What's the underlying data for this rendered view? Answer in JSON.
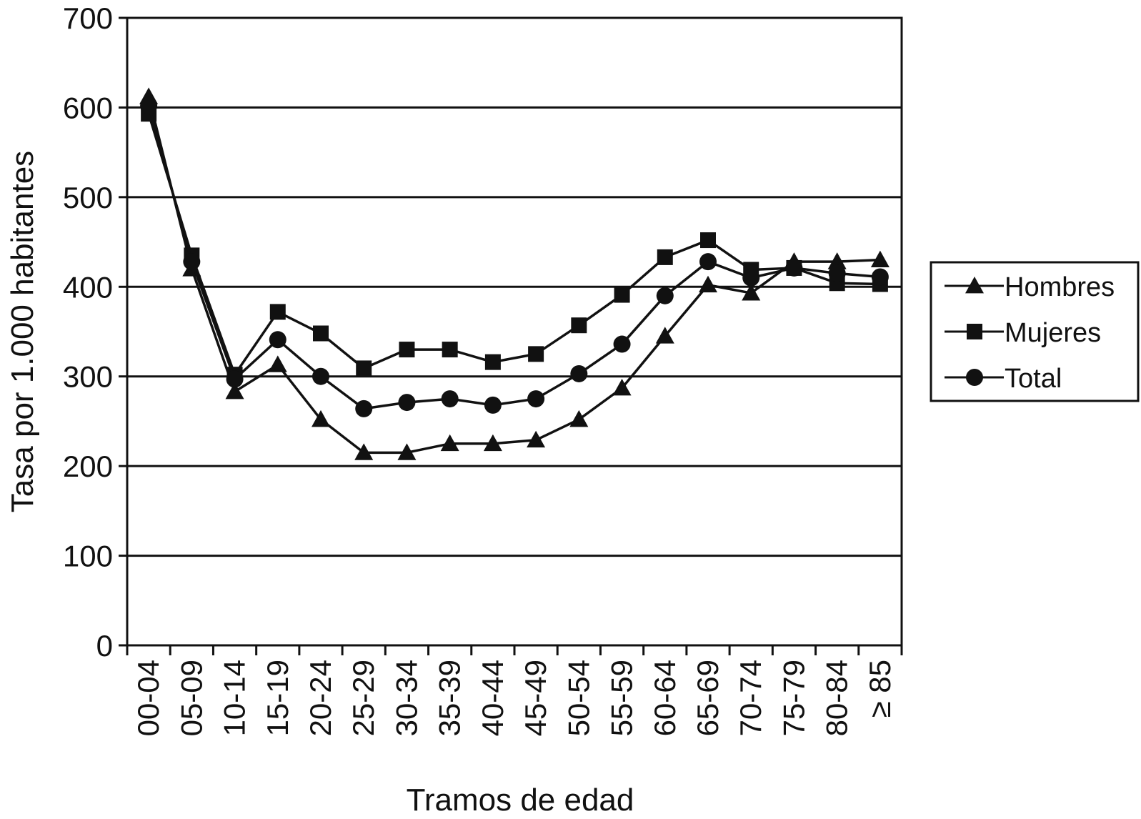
{
  "chart_data": {
    "type": "line",
    "title": "",
    "xlabel": "Tramos de edad",
    "ylabel": "Tasa por 1.000 habitantes",
    "ylim": [
      0,
      700
    ],
    "yticks": [
      0,
      100,
      200,
      300,
      400,
      500,
      600,
      700
    ],
    "grid": true,
    "legend_position": "right",
    "categories": [
      "00-04",
      "05-09",
      "10-14",
      "15-19",
      "20-24",
      "25-29",
      "30-34",
      "35-39",
      "40-44",
      "45-49",
      "50-54",
      "55-59",
      "60-64",
      "65-69",
      "70-74",
      "75-79",
      "80-84",
      "≥ 85"
    ],
    "series": [
      {
        "name": "Hombres",
        "marker": "triangle",
        "values": [
          612,
          420,
          283,
          313,
          252,
          215,
          215,
          225,
          225,
          229,
          252,
          287,
          345,
          402,
          393,
          428,
          428,
          430
        ]
      },
      {
        "name": "Mujeres",
        "marker": "square",
        "values": [
          593,
          435,
          302,
          372,
          348,
          309,
          330,
          330,
          316,
          325,
          357,
          391,
          433,
          452,
          419,
          421,
          404,
          403
        ]
      },
      {
        "name": "Total",
        "marker": "circle",
        "values": [
          602,
          428,
          297,
          341,
          300,
          264,
          271,
          275,
          268,
          275,
          303,
          336,
          390,
          428,
          410,
          421,
          415,
          411
        ]
      }
    ],
    "colors": {
      "line": "#111111",
      "grid": "#111111",
      "background": "#ffffff"
    }
  }
}
